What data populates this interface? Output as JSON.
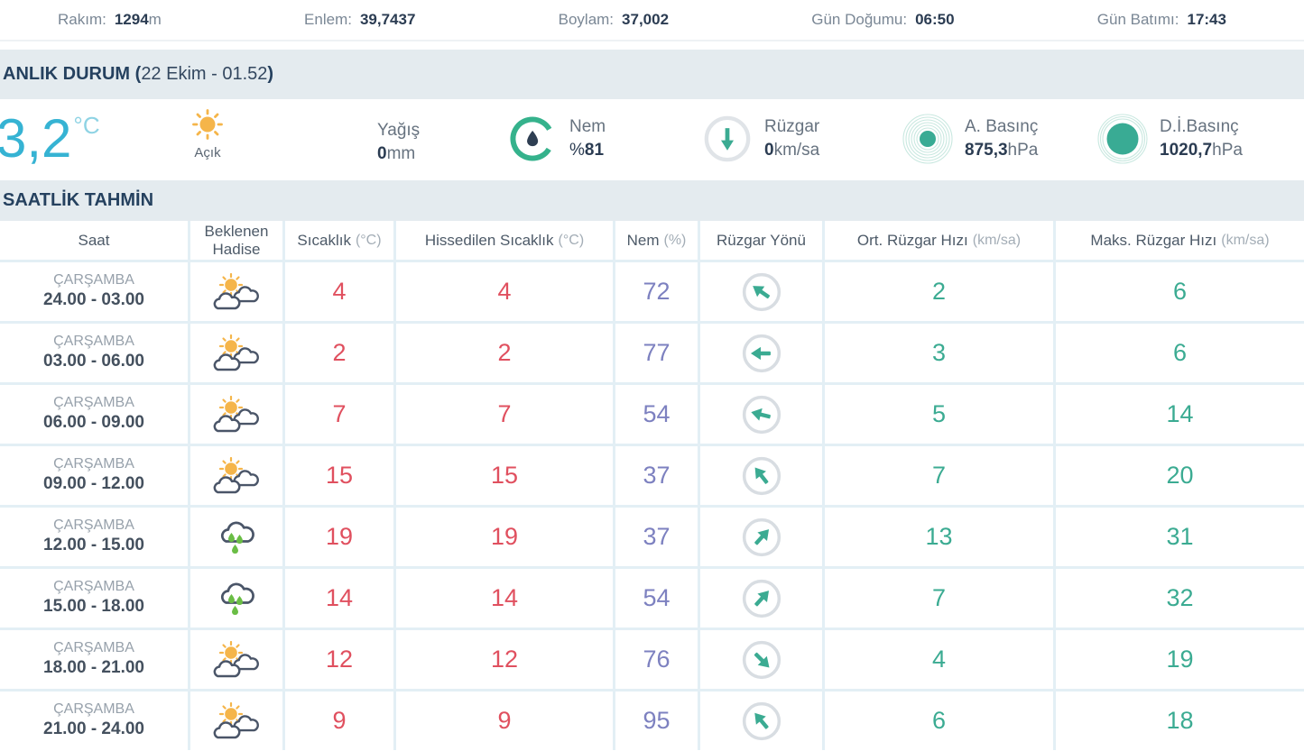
{
  "colors": {
    "accent_teal": "#3bab92",
    "temp_red": "#e0505f",
    "humidity_purple": "#7d81c0",
    "big_temp_cyan": "#36b3d3",
    "sun_orange": "#f5b54a",
    "rain_green": "#6abd45",
    "band_bg": "#e4ebef",
    "dark_navy": "#2b3c52",
    "muted_gray": "#66727f",
    "grid_blue": "#e3eff5"
  },
  "topbar": {
    "items": [
      {
        "label": "Rakım:",
        "value": "1294",
        "unit": "m"
      },
      {
        "label": "Enlem:",
        "value": "39,7437",
        "unit": ""
      },
      {
        "label": "Boylam:",
        "value": "37,002",
        "unit": ""
      },
      {
        "label": "Gün Doğumu:",
        "value": "06:50",
        "unit": ""
      },
      {
        "label": "Gün Batımı:",
        "value": "17:43",
        "unit": ""
      }
    ]
  },
  "current": {
    "section_title": "ANLIK DURUM (",
    "section_timestamp": "22 Ekim - 01.52",
    "section_title_close": ")",
    "temperature": "3,2",
    "temperature_unit": "°C",
    "condition": "Açık",
    "condition_icon": "sun-icon",
    "metrics": [
      {
        "key": "yagis",
        "label": "Yağış",
        "prefix": "",
        "value": "0",
        "unit": "mm",
        "icon": ""
      },
      {
        "key": "nem",
        "label": "Nem",
        "prefix": "%",
        "value": "81",
        "unit": "",
        "icon": "humidity-gauge-icon"
      },
      {
        "key": "ruzgar",
        "label": "Rüzgar",
        "prefix": "",
        "value": "0",
        "unit": "km/sa",
        "icon": "wind-down-arrow-icon"
      },
      {
        "key": "abasinc",
        "label": "A. Basınç",
        "prefix": "",
        "value": "875,3",
        "unit": "hPa",
        "icon": "pressure-icon"
      },
      {
        "key": "dibasinc",
        "label": "D.İ.Basınç",
        "prefix": "",
        "value": "1020,7",
        "unit": "hPa",
        "icon": "sea-level-pressure-icon"
      }
    ]
  },
  "hourly": {
    "section_title": "SAATLİK TAHMİN",
    "columns": [
      {
        "label": "Saat",
        "unit": ""
      },
      {
        "label": "Beklenen Hadise",
        "unit": ""
      },
      {
        "label": "Sıcaklık",
        "unit": "(°C)"
      },
      {
        "label": "Hissedilen Sıcaklık",
        "unit": "(°C)"
      },
      {
        "label": "Nem",
        "unit": "(%)"
      },
      {
        "label": "Rüzgar Yönü",
        "unit": ""
      },
      {
        "label": "Ort. Rüzgar Hızı",
        "unit": "(km/sa)"
      },
      {
        "label": "Maks. Rüzgar Hızı",
        "unit": "(km/sa)"
      }
    ],
    "rows": [
      {
        "day": "ÇARŞAMBA",
        "time": "24.00 - 03.00",
        "icon": "partly-cloudy",
        "temp": "4",
        "feels": "4",
        "humidity": "72",
        "wind_dir_deg": -55,
        "wind_avg": "2",
        "wind_max": "6"
      },
      {
        "day": "ÇARŞAMBA",
        "time": "03.00 - 06.00",
        "icon": "partly-cloudy",
        "temp": "2",
        "feels": "2",
        "humidity": "77",
        "wind_dir_deg": -90,
        "wind_avg": "3",
        "wind_max": "6"
      },
      {
        "day": "ÇARŞAMBA",
        "time": "06.00 - 09.00",
        "icon": "partly-cloudy",
        "temp": "7",
        "feels": "7",
        "humidity": "54",
        "wind_dir_deg": -76,
        "wind_avg": "5",
        "wind_max": "14"
      },
      {
        "day": "ÇARŞAMBA",
        "time": "09.00 - 12.00",
        "icon": "partly-cloudy",
        "temp": "15",
        "feels": "15",
        "humidity": "37",
        "wind_dir_deg": -38,
        "wind_avg": "7",
        "wind_max": "20"
      },
      {
        "day": "ÇARŞAMBA",
        "time": "12.00 - 15.00",
        "icon": "rainy",
        "temp": "19",
        "feels": "19",
        "humidity": "37",
        "wind_dir_deg": 42,
        "wind_avg": "13",
        "wind_max": "31"
      },
      {
        "day": "ÇARŞAMBA",
        "time": "15.00 - 18.00",
        "icon": "rainy",
        "temp": "14",
        "feels": "14",
        "humidity": "54",
        "wind_dir_deg": 42,
        "wind_avg": "7",
        "wind_max": "32"
      },
      {
        "day": "ÇARŞAMBA",
        "time": "18.00 - 21.00",
        "icon": "partly-cloudy",
        "temp": "12",
        "feels": "12",
        "humidity": "76",
        "wind_dir_deg": 135,
        "wind_avg": "4",
        "wind_max": "19"
      },
      {
        "day": "ÇARŞAMBA",
        "time": "21.00 - 24.00",
        "icon": "partly-cloudy",
        "temp": "9",
        "feels": "9",
        "humidity": "95",
        "wind_dir_deg": -40,
        "wind_avg": "6",
        "wind_max": "18"
      }
    ]
  }
}
